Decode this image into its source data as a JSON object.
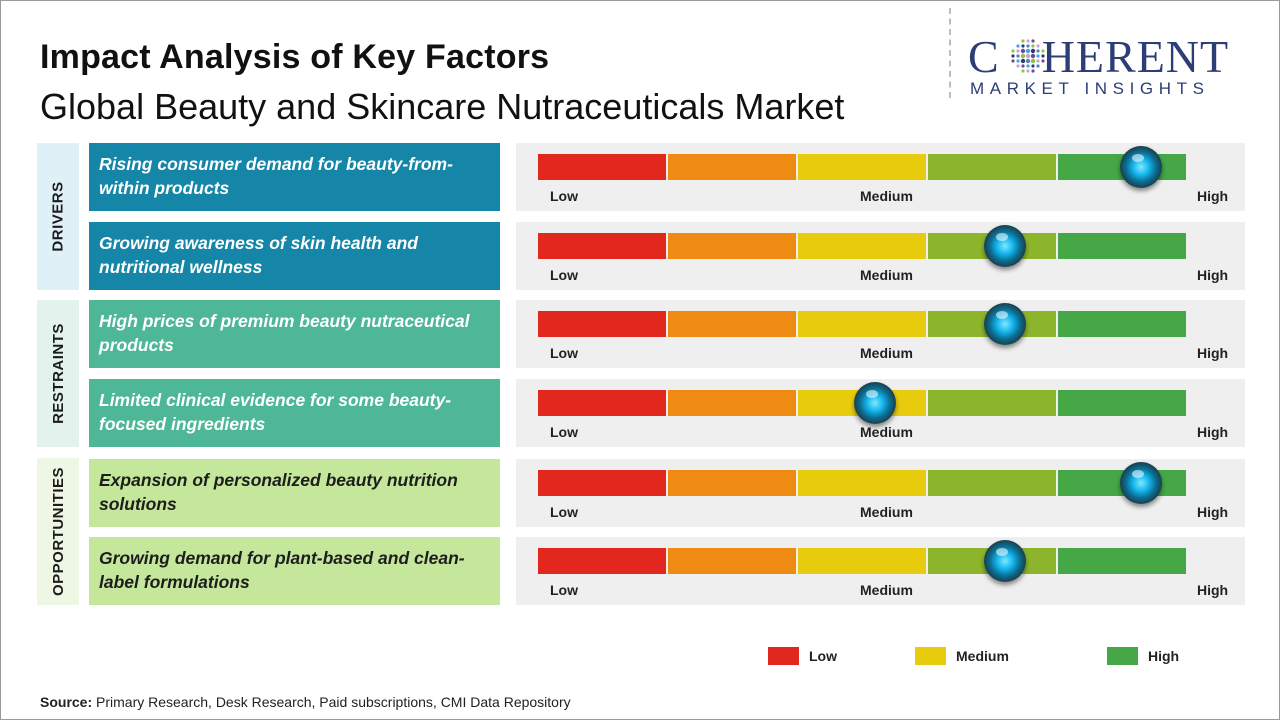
{
  "header": {
    "title": "Impact Analysis of Key Factors",
    "subtitle": "Global Beauty and Skincare Nutraceuticals Market"
  },
  "logo": {
    "word_left": "C",
    "word_right": "HERENT",
    "tagline": "MARKET INSIGHTS",
    "color": "#2d3e77"
  },
  "chart_data": {
    "type": "gauge",
    "scale": {
      "labels": [
        "Low",
        "Medium",
        "High"
      ],
      "segments": 5
    },
    "segment_colors": [
      "#e2281e",
      "#ef8a12",
      "#e9cb0e",
      "#8db52b",
      "#45a746"
    ],
    "categories": [
      {
        "name": "DRIVERS",
        "color": "#1586a8"
      },
      {
        "name": "RESTRAINTS",
        "color": "#4db796"
      },
      {
        "name": "OPPORTUNITIES",
        "color": "#c4e79b"
      }
    ],
    "factors": [
      {
        "category": "DRIVERS",
        "text": "Rising consumer demand for beauty-from-within products",
        "value": 0.93
      },
      {
        "category": "DRIVERS",
        "text": "Growing awareness of skin health and nutritional wellness",
        "value": 0.72
      },
      {
        "category": "RESTRAINTS",
        "text": "High prices of premium beauty nutraceutical products",
        "value": 0.72
      },
      {
        "category": "RESTRAINTS",
        "text": "Limited clinical evidence for some beauty-focused ingredients",
        "value": 0.52
      },
      {
        "category": "OPPORTUNITIES",
        "text": "Expansion of personalized beauty nutrition solutions",
        "value": 0.93
      },
      {
        "category": "OPPORTUNITIES",
        "text": "Growing demand for plant-based and clean-label formulations",
        "value": 0.72
      }
    ],
    "legend": [
      {
        "label": "Low",
        "color": "#e2281e"
      },
      {
        "label": "Medium",
        "color": "#e9cb0e"
      },
      {
        "label": "High",
        "color": "#45a746"
      }
    ]
  },
  "footer": {
    "source_label": "Source:",
    "source_text": " Primary Research, Desk Research, Paid subscriptions, CMI Data Repository"
  }
}
